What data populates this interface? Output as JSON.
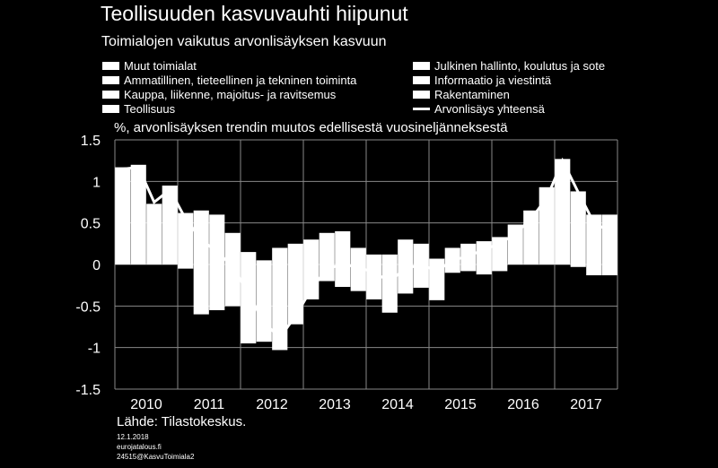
{
  "header": {
    "title": "Teollisuuden kasvuvauhti hiipunut",
    "subtitle": "Toimialojen vaikutus arvonlisäyksen kasvuun"
  },
  "legend": [
    {
      "label": "Muut toimialat",
      "kind": "bar"
    },
    {
      "label": "Ammatillinen, tieteellinen ja tekninen toiminta",
      "kind": "bar"
    },
    {
      "label": "Kauppa, liikenne, majoitus- ja ravitsemus",
      "kind": "bar"
    },
    {
      "label": "Teollisuus",
      "kind": "bar"
    },
    {
      "label": "Julkinen hallinto, koulutus ja sote",
      "kind": "bar"
    },
    {
      "label": "Informaatio ja viestintä",
      "kind": "bar"
    },
    {
      "label": "Rakentaminen",
      "kind": "bar"
    },
    {
      "label": "Arvonlisäys yhteensä",
      "kind": "line"
    }
  ],
  "footer": {
    "source": "Lähde: Tilastokeskus.",
    "date": "12.1.2018",
    "site": "eurojatalous.fi",
    "code": "24515@KasvuToimiala2"
  },
  "chart_data": {
    "type": "bar",
    "stacked": true,
    "ylabel": "%, arvonlisäyksen trendin muutos edellisestä vuosineljänneksestä",
    "ylim": [
      -1.5,
      1.5
    ],
    "yticks": [
      "1.5",
      "1",
      "0.5",
      "0",
      "-0.5",
      "-1",
      "-1.5"
    ],
    "xlabels": [
      "2010",
      "2011",
      "2012",
      "2013",
      "2014",
      "2015",
      "2016",
      "2017"
    ],
    "categories": [
      "2010Q1",
      "2010Q2",
      "2010Q3",
      "2010Q4",
      "2011Q1",
      "2011Q2",
      "2011Q3",
      "2011Q4",
      "2012Q1",
      "2012Q2",
      "2012Q3",
      "2012Q4",
      "2013Q1",
      "2013Q2",
      "2013Q3",
      "2013Q4",
      "2014Q1",
      "2014Q2",
      "2014Q3",
      "2014Q4",
      "2015Q1",
      "2015Q2",
      "2015Q3",
      "2015Q4",
      "2016Q1",
      "2016Q2",
      "2016Q3",
      "2016Q4",
      "2017Q1",
      "2017Q2",
      "2017Q3",
      "2017Q4"
    ],
    "bar_top": [
      1.17,
      1.2,
      0.73,
      0.95,
      0.62,
      0.65,
      0.6,
      0.38,
      0.15,
      0.05,
      0.2,
      0.25,
      0.3,
      0.38,
      0.4,
      0.2,
      0.12,
      0.12,
      0.3,
      0.25,
      0.07,
      0.2,
      0.25,
      0.28,
      0.33,
      0.48,
      0.65,
      0.93,
      1.27,
      0.88,
      0.6,
      0.6
    ],
    "bar_bottom": [
      0.0,
      0.0,
      0.0,
      0.0,
      -0.05,
      -0.6,
      -0.55,
      -0.5,
      -0.95,
      -0.93,
      -1.03,
      -0.72,
      -0.42,
      -0.2,
      -0.27,
      -0.32,
      -0.42,
      -0.58,
      -0.35,
      -0.28,
      -0.43,
      -0.1,
      -0.08,
      -0.12,
      -0.08,
      0.0,
      0.0,
      0.0,
      0.0,
      -0.03,
      -0.13,
      -0.13
    ],
    "series": [
      {
        "name": "Arvonlisäys yhteensä",
        "type": "line",
        "values": [
          1.15,
          1.17,
          0.75,
          0.9,
          0.55,
          0.3,
          0.15,
          -0.02,
          -0.35,
          -0.7,
          -0.88,
          -0.62,
          -0.3,
          -0.05,
          0.0,
          -0.03,
          -0.1,
          -0.2,
          -0.05,
          0.0,
          -0.08,
          0.05,
          0.1,
          0.18,
          0.25,
          0.37,
          0.55,
          0.8,
          1.25,
          0.87,
          0.5,
          0.4
        ]
      }
    ],
    "grid": true
  }
}
